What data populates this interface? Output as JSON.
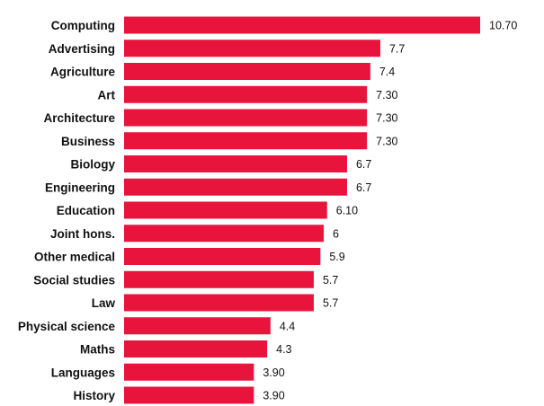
{
  "chart_data": {
    "type": "bar",
    "orientation": "horizontal",
    "title": "",
    "xlabel": "",
    "ylabel": "",
    "grid": false,
    "legend": "none",
    "bar_color": "#e8143c",
    "xlim": [
      0,
      10.7
    ],
    "categories": [
      "Computing",
      "Advertising",
      "Agriculture",
      "Art",
      "Architecture",
      "Business",
      "Biology",
      "Engineering",
      "Education",
      "Joint hons.",
      "Other medical",
      "Social studies",
      "Law",
      "Physical science",
      "Maths",
      "Languages",
      "History"
    ],
    "values": [
      10.7,
      7.7,
      7.4,
      7.3,
      7.3,
      7.3,
      6.7,
      6.7,
      6.1,
      6,
      5.9,
      5.7,
      5.7,
      4.4,
      4.3,
      3.9,
      3.9
    ],
    "value_labels": [
      "10.70",
      "7.7",
      "7.4",
      "7.30",
      "7.30",
      "7.30",
      "6.7",
      "6.7",
      "6.10",
      "6",
      "5.9",
      "5.7",
      "5.7",
      "4.4",
      "4.3",
      "3.90",
      "3.90"
    ]
  }
}
